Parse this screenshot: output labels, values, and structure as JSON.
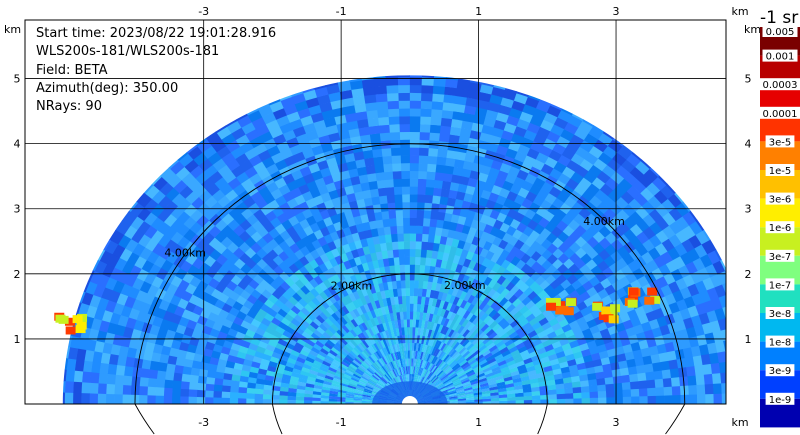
{
  "info": {
    "start_time": "Start time: 2023/08/22 19:01:28.916",
    "instrument": "WLS200s-181/WLS200s-181",
    "field": "Field: BETA",
    "azimuth": "Azimuth(deg): 350.00",
    "nrays": "NRays: 90"
  },
  "colorbar": {
    "title": "-1 sr",
    "labels": [
      "0.005",
      "0.001",
      "0.0003",
      "0.0001",
      "3e-5",
      "1e-5",
      "3e-6",
      "1e-6",
      "3e-7",
      "1e-7",
      "3e-8",
      "1e-8",
      "3e-9",
      "1e-9"
    ],
    "colors": [
      "#7a0000",
      "#b80000",
      "#e60000",
      "#ff3300",
      "#ff8000",
      "#ffc000",
      "#ffee00",
      "#c8f020",
      "#7fff7f",
      "#20e0c0",
      "#00b8f0",
      "#0080ff",
      "#0040ff",
      "#0000b0"
    ]
  },
  "chart_data": {
    "type": "heatmap",
    "title": "",
    "xlabel": "km",
    "ylabel": "km",
    "xlim": [
      -5.6,
      4.6
    ],
    "ylim": [
      0,
      5.9
    ],
    "x_ticks": [
      -3,
      -1,
      1,
      3
    ],
    "y_ticks": [
      1,
      2,
      3,
      4,
      5
    ],
    "x_tick_labels": [
      "-3",
      "-1",
      "1",
      "3"
    ],
    "y_tick_labels": [
      "1",
      "2",
      "3",
      "4",
      "5"
    ],
    "range_rings_km": [
      2.0,
      4.0
    ],
    "range_ring_labels": [
      "2.00km",
      "2.00km",
      "4.00km",
      "4.00km"
    ],
    "max_range_km": 5.05,
    "grid": true,
    "field": "BETA",
    "scale": "log",
    "hotspots": [
      {
        "x": -4.9,
        "y": 1.25,
        "level": "3e-6"
      },
      {
        "x": 2.2,
        "y": 1.45,
        "level": "3e-5"
      },
      {
        "x": 2.85,
        "y": 1.4,
        "level": "1e-5"
      },
      {
        "x": 3.35,
        "y": 1.65,
        "level": "3e-5"
      }
    ]
  }
}
